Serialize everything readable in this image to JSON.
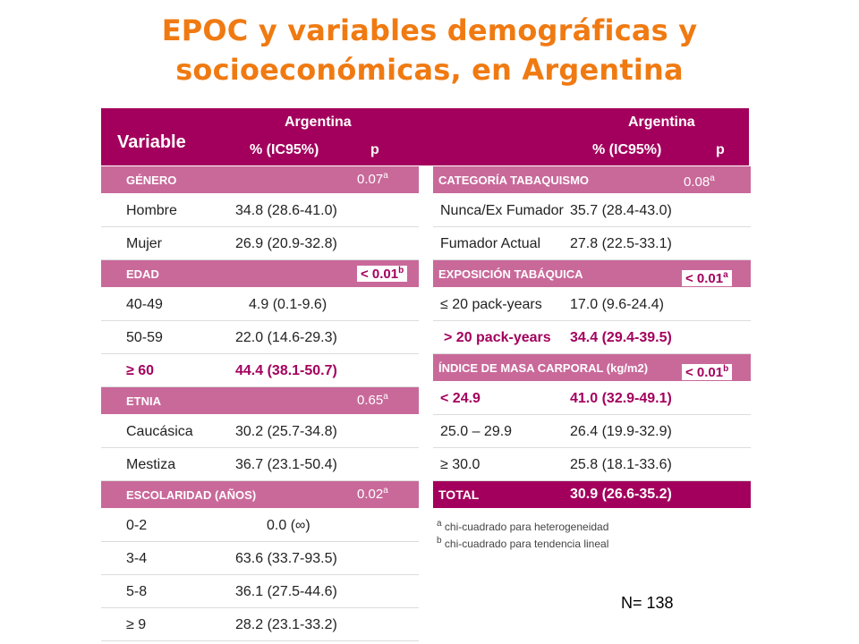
{
  "title_line1": "EPOC  y variables demográficas y",
  "title_line2": "socioeconómicas, en Argentina",
  "header": {
    "variable": "Variable",
    "left_country": "Argentina",
    "left_stat": "% (IC95%)",
    "left_p": "p",
    "right_country": "Argentina",
    "right_stat": "% (IC95%)",
    "right_p": "p"
  },
  "left": {
    "genero": {
      "label": "GÉNERO",
      "p": "0.07",
      "sup": "a",
      "rows": [
        {
          "label": "Hombre",
          "value": "34.8 (28.6-41.0)"
        },
        {
          "label": "Mujer",
          "value": "26.9 (20.9-32.8)"
        }
      ]
    },
    "edad": {
      "label": "EDAD",
      "p": "< 0.01",
      "sup": "b",
      "rows": [
        {
          "label": "40-49",
          "value": "4.9 (0.1-9.6)"
        },
        {
          "label": "50-59",
          "value": "22.0 (14.6-29.3)"
        },
        {
          "label": "≥ 60",
          "value": "44.4 (38.1-50.7)"
        }
      ]
    },
    "etnia": {
      "label": "ETNIA",
      "p": "0.65",
      "sup": "a",
      "rows": [
        {
          "label": "Caucásica",
          "value": "30.2 (25.7-34.8)"
        },
        {
          "label": "Mestiza",
          "value": "36.7 (23.1-50.4)"
        }
      ]
    },
    "escolaridad": {
      "label": "ESCOLARIDAD (AÑOS)",
      "p": "0.02",
      "sup": "a",
      "rows": [
        {
          "label": "0-2",
          "value": "0.0 (∞)"
        },
        {
          "label": "3-4",
          "value": "63.6 (33.7-93.5)"
        },
        {
          "label": "5-8",
          "value": "36.1 (27.5-44.6)"
        },
        {
          "label": "≥ 9",
          "value": "28.2 (23.1-33.2)"
        }
      ]
    }
  },
  "right": {
    "tabaquismo": {
      "label": "CATEGORÍA TABAQUISMO",
      "p": "0.08",
      "sup": "a",
      "rows": [
        {
          "label": "Nunca/Ex Fumador",
          "value": "35.7 (28.4-43.0)"
        },
        {
          "label": "Fumador Actual",
          "value": "27.8 (22.5-33.1)"
        }
      ]
    },
    "exposicion": {
      "label": "EXPOSICIÓN TABÁQUICA",
      "p": "< 0.01",
      "sup": "a",
      "rows": [
        {
          "label": "≤ 20 pack-years",
          "value": "17.0 (9.6-24.4)"
        },
        {
          "label": "> 20 pack-years",
          "value": "34.4 (29.4-39.5)"
        }
      ]
    },
    "imc": {
      "label": "ÍNDICE DE MASA CARPORAL (kg/m2)",
      "p": "< 0.01",
      "sup": "b",
      "rows": [
        {
          "label": "< 24.9",
          "value": "41.0 (32.9-49.1)"
        },
        {
          "label": "25.0 – 29.9",
          "value": "26.4 (19.9-32.9)"
        },
        {
          "label": "≥ 30.0",
          "value": "25.8 (18.1-33.6)"
        }
      ]
    },
    "total": {
      "label": "TOTAL",
      "value": "30.9 (26.6-35.2)"
    }
  },
  "notes": {
    "a_sup": "a",
    "a_text": "chi-cuadrado para heterogeneidad",
    "b_sup": "b",
    "b_text": "chi-cuadrado para tendencia lineal"
  },
  "n_label": "N= 138",
  "colors": {
    "title": "#f07a12",
    "header": "#a3005d",
    "section": "#c9699a"
  }
}
